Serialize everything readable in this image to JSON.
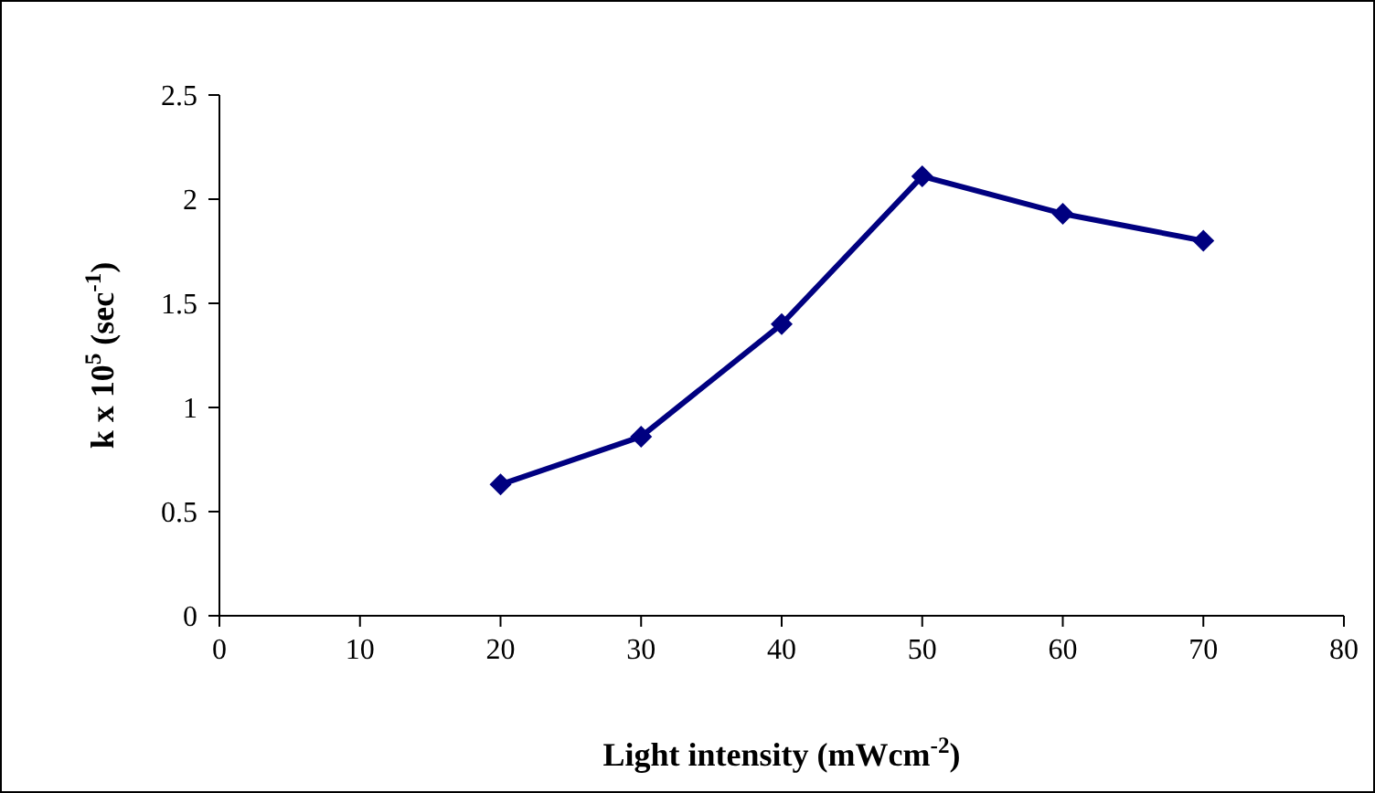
{
  "chart_data": {
    "type": "line",
    "xlabel": "Light intensity (mWcm$^{-2}$)",
    "ylabel": "k x 10$^{5}$ (sec$^{-1}$)",
    "x": [
      20,
      30,
      40,
      50,
      60,
      70
    ],
    "series": [
      {
        "color": "#000080",
        "values": [
          0.63,
          0.86,
          1.4,
          2.11,
          1.93,
          1.8
        ]
      }
    ],
    "xlim": [
      0,
      80
    ],
    "xticks": [
      0,
      10,
      20,
      30,
      40,
      50,
      60,
      70,
      80
    ],
    "ylim": [
      0,
      2.5
    ],
    "yticks": [
      0,
      0.5,
      1,
      1.5,
      2,
      2.5
    ],
    "grid": false,
    "marker": "diamond",
    "line_style": "solid"
  }
}
